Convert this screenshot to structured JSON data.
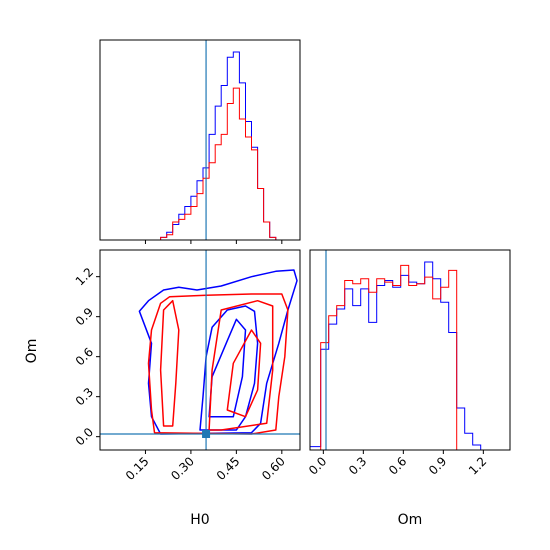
{
  "chart_data": [
    {
      "type": "histogram",
      "panel": "H0 marginal",
      "x_range": [
        0.0,
        0.66
      ],
      "truth_line": 0.35,
      "bin_edges": [
        0.2,
        0.22,
        0.24,
        0.26,
        0.28,
        0.3,
        0.32,
        0.34,
        0.36,
        0.38,
        0.4,
        0.42,
        0.44,
        0.46,
        0.48,
        0.5,
        0.52,
        0.54,
        0.56,
        0.58,
        0.6
      ],
      "series": [
        {
          "color": "blue",
          "counts": [
            1,
            3,
            6,
            10,
            13,
            17,
            23,
            28,
            41,
            52,
            60,
            71,
            73,
            61,
            46,
            36,
            20,
            7,
            1,
            0
          ]
        },
        {
          "color": "red",
          "counts": [
            1,
            2,
            7,
            8,
            10,
            13,
            18,
            24,
            30,
            37,
            41,
            53,
            59,
            47,
            40,
            35,
            20,
            7,
            1,
            0
          ]
        }
      ]
    },
    {
      "type": "contour",
      "panel": "H0 vs Om",
      "xlabel": "H0",
      "ylabel": "Om",
      "x_range": [
        0.0,
        0.66
      ],
      "y_range": [
        -0.1,
        1.4
      ],
      "x_ticks": [
        "0.15",
        "0.30",
        "0.45",
        "0.60"
      ],
      "y_ticks": [
        "0.0",
        "0.3",
        "0.6",
        "0.9",
        "1.2"
      ],
      "truth": {
        "H0": 0.35,
        "Om": 0.02
      },
      "series": [
        {
          "color": "blue",
          "contours": [
            [
              [
                0.2,
                0.02
              ],
              [
                0.17,
                0.15
              ],
              [
                0.16,
                0.4
              ],
              [
                0.17,
                0.7
              ],
              [
                0.13,
                0.94
              ],
              [
                0.16,
                1.02
              ],
              [
                0.21,
                1.1
              ],
              [
                0.26,
                1.12
              ],
              [
                0.32,
                1.1
              ],
              [
                0.4,
                1.13
              ],
              [
                0.5,
                1.2
              ],
              [
                0.58,
                1.24
              ],
              [
                0.64,
                1.25
              ],
              [
                0.65,
                1.17
              ],
              [
                0.62,
                0.95
              ],
              [
                0.59,
                0.7
              ],
              [
                0.55,
                0.4
              ],
              [
                0.53,
                0.1
              ],
              [
                0.5,
                0.03
              ],
              [
                0.2,
                0.02
              ]
            ],
            [
              [
                0.33,
                0.05
              ],
              [
                0.34,
                0.3
              ],
              [
                0.35,
                0.6
              ],
              [
                0.37,
                0.82
              ],
              [
                0.42,
                0.95
              ],
              [
                0.48,
                0.98
              ],
              [
                0.51,
                0.94
              ],
              [
                0.52,
                0.7
              ],
              [
                0.51,
                0.4
              ],
              [
                0.48,
                0.15
              ],
              [
                0.45,
                0.05
              ],
              [
                0.33,
                0.05
              ]
            ],
            [
              [
                0.36,
                0.15
              ],
              [
                0.37,
                0.45
              ],
              [
                0.42,
                0.72
              ],
              [
                0.45,
                0.88
              ],
              [
                0.48,
                0.8
              ],
              [
                0.47,
                0.45
              ],
              [
                0.44,
                0.15
              ],
              [
                0.36,
                0.15
              ]
            ]
          ]
        },
        {
          "color": "red",
          "contours": [
            [
              [
                0.18,
                0.03
              ],
              [
                0.17,
                0.2
              ],
              [
                0.16,
                0.55
              ],
              [
                0.17,
                0.8
              ],
              [
                0.2,
                1.0
              ],
              [
                0.23,
                1.05
              ],
              [
                0.35,
                1.06
              ],
              [
                0.5,
                1.07
              ],
              [
                0.6,
                1.07
              ],
              [
                0.62,
                0.95
              ],
              [
                0.61,
                0.6
              ],
              [
                0.59,
                0.3
              ],
              [
                0.58,
                0.05
              ],
              [
                0.5,
                0.02
              ],
              [
                0.18,
                0.03
              ]
            ],
            [
              [
                0.21,
                0.08
              ],
              [
                0.2,
                0.5
              ],
              [
                0.21,
                0.95
              ],
              [
                0.24,
                1.02
              ],
              [
                0.26,
                0.8
              ],
              [
                0.25,
                0.4
              ],
              [
                0.24,
                0.08
              ],
              [
                0.21,
                0.08
              ]
            ],
            [
              [
                0.36,
                0.05
              ],
              [
                0.37,
                0.5
              ],
              [
                0.4,
                0.95
              ],
              [
                0.52,
                1.02
              ],
              [
                0.57,
                0.98
              ],
              [
                0.57,
                0.5
              ],
              [
                0.55,
                0.1
              ],
              [
                0.4,
                0.05
              ],
              [
                0.36,
                0.05
              ]
            ],
            [
              [
                0.42,
                0.2
              ],
              [
                0.44,
                0.55
              ],
              [
                0.5,
                0.8
              ],
              [
                0.53,
                0.7
              ],
              [
                0.52,
                0.35
              ],
              [
                0.48,
                0.15
              ],
              [
                0.42,
                0.2
              ]
            ]
          ]
        }
      ]
    },
    {
      "type": "histogram",
      "panel": "Om marginal",
      "xlabel": "Om",
      "x_range": [
        -0.1,
        1.4
      ],
      "x_ticks": [
        "0.0",
        "0.3",
        "0.6",
        "0.9",
        "1.2"
      ],
      "truth_line": 0.02,
      "bin_edges": [
        -0.1,
        -0.02,
        0.04,
        0.1,
        0.16,
        0.22,
        0.28,
        0.34,
        0.4,
        0.46,
        0.52,
        0.58,
        0.64,
        0.7,
        0.76,
        0.82,
        0.88,
        0.94,
        1.0,
        1.06,
        1.12,
        1.18,
        1.24
      ],
      "series": [
        {
          "color": "blue",
          "counts": [
            2,
            60,
            75,
            84,
            96,
            86,
            96,
            76,
            98,
            101,
            97,
            104,
            100,
            99,
            112,
            102,
            88,
            70,
            25,
            10,
            3,
            0
          ]
        },
        {
          "color": "red",
          "counts": [
            0,
            64,
            80,
            86,
            101,
            99,
            102,
            94,
            102,
            100,
            98,
            110,
            98,
            99,
            103,
            90,
            97,
            107,
            0,
            0,
            0,
            0
          ]
        }
      ]
    }
  ]
}
